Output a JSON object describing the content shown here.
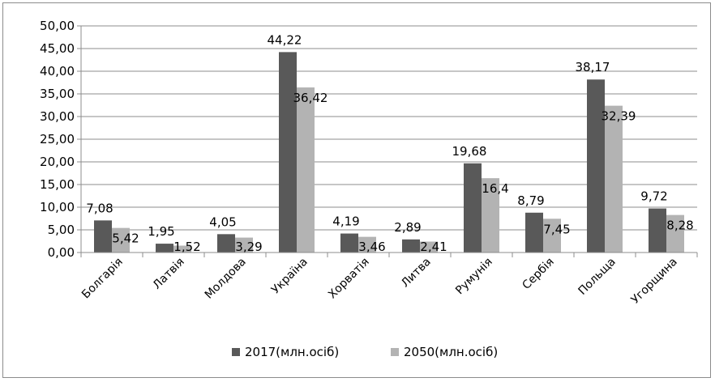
{
  "chart_data": {
    "type": "bar",
    "categories": [
      "Болгарія",
      "Латвія",
      "Молдова",
      "Україна",
      "Хорватія",
      "Литва",
      "Румунія",
      "Сербія",
      "Польща",
      "Угорщина"
    ],
    "series": [
      {
        "name": "2017(млн.осіб)",
        "color": "#595959",
        "values": [
          7.08,
          1.95,
          4.05,
          44.22,
          4.19,
          2.89,
          19.68,
          8.79,
          38.17,
          9.72
        ],
        "labels": [
          "7,08",
          "1,95",
          "4,05",
          "44,22",
          "4,19",
          "2,89",
          "19,68",
          "8,79",
          "38,17",
          "9,72"
        ]
      },
      {
        "name": "2050(млн.осіб)",
        "color": "#b3b3b3",
        "values": [
          5.42,
          1.52,
          3.29,
          36.42,
          3.46,
          2.41,
          16.4,
          7.45,
          32.39,
          8.28
        ],
        "labels": [
          "5,42",
          "1,52",
          "3,29",
          "36,42",
          "3,46",
          "2,41",
          "16,4",
          "7,45",
          "32,39",
          "8,28"
        ]
      }
    ],
    "ylim": [
      0,
      50
    ],
    "yticks": [
      "0,00",
      "5,00",
      "10,00",
      "15,00",
      "20,00",
      "25,00",
      "30,00",
      "35,00",
      "40,00",
      "45,00",
      "50,00"
    ],
    "grid": true,
    "legend": "bottom",
    "title": "",
    "xlabel": "",
    "ylabel": ""
  }
}
